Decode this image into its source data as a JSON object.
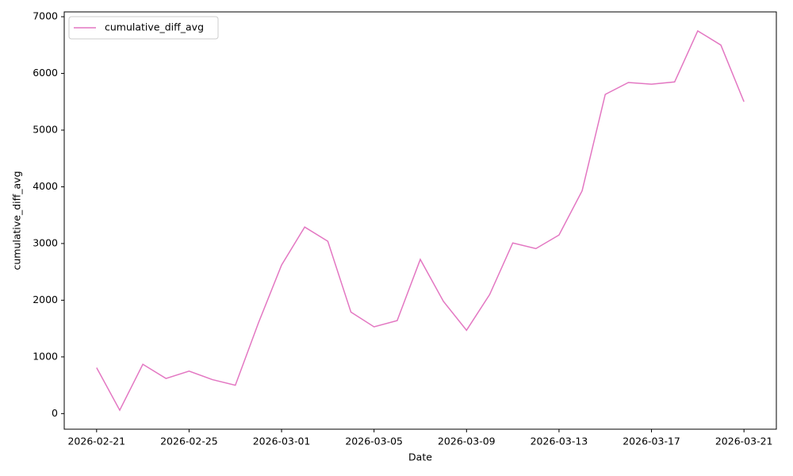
{
  "chart_data": {
    "type": "line",
    "x": [
      "2026-02-21",
      "2026-02-22",
      "2026-02-23",
      "2026-02-24",
      "2026-02-25",
      "2026-02-26",
      "2026-02-27",
      "2026-02-28",
      "2026-03-01",
      "2026-03-02",
      "2026-03-03",
      "2026-03-04",
      "2026-03-05",
      "2026-03-06",
      "2026-03-07",
      "2026-03-08",
      "2026-03-09",
      "2026-03-10",
      "2026-03-11",
      "2026-03-12",
      "2026-03-13",
      "2026-03-14",
      "2026-03-15",
      "2026-03-16",
      "2026-03-17",
      "2026-03-18",
      "2026-03-19",
      "2026-03-20",
      "2026-03-21"
    ],
    "series": [
      {
        "name": "cumulative_diff_avg",
        "color": "#e377c2",
        "values": [
          810,
          60,
          870,
          620,
          750,
          600,
          500,
          1600,
          2620,
          3290,
          3040,
          1790,
          1530,
          1640,
          2720,
          1980,
          1470,
          2100,
          3010,
          2910,
          3150,
          3930,
          5630,
          5840,
          5810,
          5850,
          6750,
          6500,
          5500
        ]
      }
    ],
    "xlabel": "Date",
    "ylabel": "cumulative_diff_avg",
    "xlim": [
      "2026-02-19T14:24",
      "2026-03-22T09:36"
    ],
    "xticks": [
      "2026-02-21",
      "2026-02-25",
      "2026-03-01",
      "2026-03-05",
      "2026-03-09",
      "2026-03-13",
      "2026-03-17",
      "2026-03-21"
    ],
    "ylim": [
      -275,
      7085
    ],
    "yticks": [
      0,
      1000,
      2000,
      3000,
      4000,
      5000,
      6000,
      7000
    ],
    "grid": false,
    "legend": "upper left"
  }
}
